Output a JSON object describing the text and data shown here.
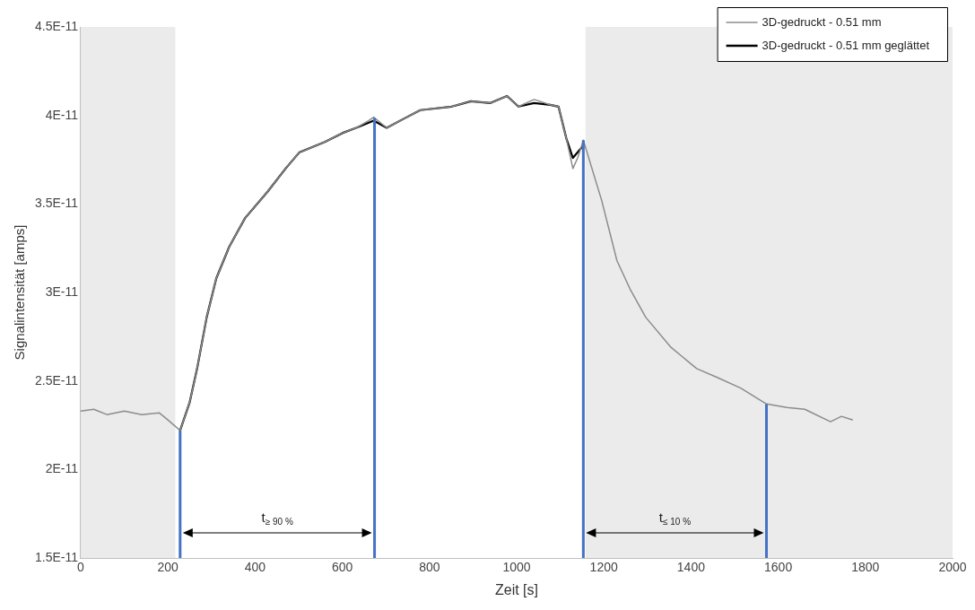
{
  "chart_data": {
    "type": "line",
    "xlabel": "Zeit [s]",
    "ylabel": "Signalintensität [amps]",
    "xlim": [
      0,
      2000
    ],
    "xticks": [
      0,
      200,
      400,
      600,
      800,
      1000,
      1200,
      1400,
      1600,
      1800,
      2000
    ],
    "ylim": [
      1.5e-11,
      4.5e-11
    ],
    "yticks": [
      {
        "value": 1.5e-11,
        "label": "1.5E-11"
      },
      {
        "value": 2e-11,
        "label": "2E-11"
      },
      {
        "value": 2.5e-11,
        "label": "2.5E-11"
      },
      {
        "value": 3e-11,
        "label": "3E-11"
      },
      {
        "value": 3.5e-11,
        "label": "3.5E-11"
      },
      {
        "value": 4e-11,
        "label": "4E-11"
      },
      {
        "value": 4.5e-11,
        "label": "4.5E-11"
      }
    ],
    "grid": false,
    "legend": "top right",
    "marker": "none",
    "line_style": "solid",
    "series": [
      {
        "name": "3D-gedruckt - 0.51 mm",
        "color": "#8c8c8c",
        "x": [
          0,
          30,
          60,
          100,
          140,
          180,
          200,
          228,
          250,
          267,
          289,
          311,
          341,
          377,
          429,
          470,
          501,
          560,
          600,
          632,
          660,
          672,
          702,
          740,
          779,
          851,
          895,
          940,
          978,
          1004,
          1040,
          1077,
          1096,
          1114,
          1129,
          1140,
          1153,
          1195,
          1230,
          1260,
          1296,
          1354,
          1413,
          1460,
          1514,
          1573,
          1620,
          1661,
          1720,
          1745,
          1770
        ],
        "values": [
          2.33e-11,
          2.34e-11,
          2.31e-11,
          2.33e-11,
          2.31e-11,
          2.32e-11,
          2.28e-11,
          2.22e-11,
          2.38e-11,
          2.57e-11,
          2.86e-11,
          3.08e-11,
          3.26e-11,
          3.42e-11,
          3.57e-11,
          3.7e-11,
          3.79e-11,
          3.85e-11,
          3.9e-11,
          3.93e-11,
          3.97e-11,
          3.99e-11,
          3.93e-11,
          3.98e-11,
          4.03e-11,
          4.05e-11,
          4.08e-11,
          4.07e-11,
          4.11e-11,
          4.05e-11,
          4.09e-11,
          4.06e-11,
          4.05e-11,
          3.87e-11,
          3.7e-11,
          3.76e-11,
          3.86e-11,
          3.52e-11,
          3.18e-11,
          3.02e-11,
          2.86e-11,
          2.69e-11,
          2.57e-11,
          2.52e-11,
          2.46e-11,
          2.37e-11,
          2.35e-11,
          2.34e-11,
          2.27e-11,
          2.3e-11,
          2.28e-11
        ]
      },
      {
        "name": "3D-gedruckt - 0.51 mm geglättet",
        "color": "#000000",
        "x": [
          228,
          250,
          267,
          289,
          311,
          341,
          377,
          429,
          470,
          501,
          560,
          600,
          632,
          672,
          702,
          740,
          779,
          851,
          895,
          940,
          978,
          1004,
          1040,
          1077,
          1096,
          1114,
          1129,
          1153
        ],
        "values": [
          2.22e-11,
          2.38e-11,
          2.57e-11,
          2.86e-11,
          3.08e-11,
          3.26e-11,
          3.42e-11,
          3.57e-11,
          3.7e-11,
          3.79e-11,
          3.85e-11,
          3.9e-11,
          3.93e-11,
          3.97e-11,
          3.93e-11,
          3.98e-11,
          4.03e-11,
          4.05e-11,
          4.08e-11,
          4.07e-11,
          4.11e-11,
          4.05e-11,
          4.07e-11,
          4.06e-11,
          4.05e-11,
          3.87e-11,
          3.76e-11,
          3.83e-11
        ]
      }
    ],
    "bands": [
      {
        "axis": "x",
        "from": 0,
        "to": 217,
        "color": "#ebebeb"
      },
      {
        "axis": "x",
        "from": 1158,
        "to": 2000,
        "color": "#ebebeb"
      }
    ],
    "ref_lines": [
      {
        "axis": "x",
        "value": 228,
        "color": "#4472c4"
      },
      {
        "axis": "x",
        "value": 674,
        "color": "#4472c4"
      },
      {
        "axis": "x",
        "value": 1153,
        "color": "#4472c4"
      },
      {
        "axis": "x",
        "value": 1573,
        "color": "#4472c4"
      }
    ],
    "annotations": [
      "t$_{≥ 90 %}$",
      "t$_{≤ 10 %}$"
    ]
  }
}
